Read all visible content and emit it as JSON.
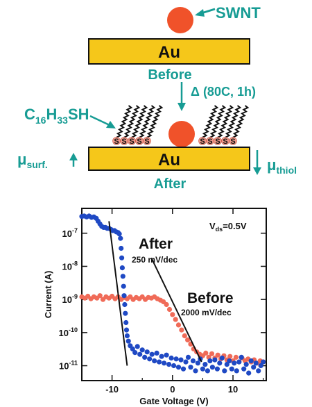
{
  "schematic": {
    "swnt_label": "SWNT",
    "electrode_label": "Au",
    "before_label": "Before",
    "after_label": "After",
    "anneal_label": "Δ (80C, 1h)",
    "thiol_label": {
      "main": "C",
      "sub1": "16",
      "mid": "H",
      "sub2": "33",
      "end": "SH"
    },
    "sulfur_symbol": "S",
    "mu_surf": {
      "mu": "μ",
      "sub": "surf."
    },
    "mu_thiol": {
      "mu": "μ",
      "sub": "thiol"
    },
    "colors": {
      "gold": "#f5c71a",
      "tube": "#f0522a",
      "teal": "#179c94",
      "sulfur": "#f19a8c"
    }
  },
  "chart_data": {
    "type": "scatter",
    "xlabel": "Gate Voltage (V)",
    "ylabel": "Current (A)",
    "xlim": [
      -15,
      15.5
    ],
    "ylim_log10": [
      -11.45,
      -6.25
    ],
    "y_scale": "log",
    "x_ticks": [
      -10,
      0,
      10
    ],
    "x_tick_labels": [
      "-10",
      "0",
      "10"
    ],
    "y_ticks_log10": [
      -7,
      -8,
      -9,
      -10,
      -11
    ],
    "vds_label": {
      "main": "V",
      "sub": "ds",
      "tail": "=0.5V"
    },
    "series": [
      {
        "name": "After",
        "color": "#1f49c4",
        "points": [
          [
            -15,
            3.2e-07
          ],
          [
            -14.6,
            3.3e-07
          ],
          [
            -14.2,
            3.1e-07
          ],
          [
            -13.8,
            3.3e-07
          ],
          [
            -13.4,
            3e-07
          ],
          [
            -13,
            3.1e-07
          ],
          [
            -12.6,
            2.8e-07
          ],
          [
            -12.3,
            2.3e-07
          ],
          [
            -12,
            1.9e-07
          ],
          [
            -11.7,
            1.6e-07
          ],
          [
            -11.4,
            1.5e-07
          ],
          [
            -11.1,
            1.5e-07
          ],
          [
            -10.8,
            1.4e-07
          ],
          [
            -10.5,
            1.4e-07
          ],
          [
            -10.2,
            1.3e-07
          ],
          [
            -9.9,
            1.2e-07
          ],
          [
            -9.6,
            1.2e-07
          ],
          [
            -9.3,
            1.1e-07
          ],
          [
            -9,
            1.05e-07
          ],
          [
            -8.8,
            9.5e-08
          ],
          [
            -8.6,
            7e-08
          ],
          [
            -8.5,
            3.5e-08
          ],
          [
            -8.4,
            1.8e-08
          ],
          [
            -8.3,
            9e-09
          ],
          [
            -8.2,
            5e-09
          ],
          [
            -8.1,
            2.5e-09
          ],
          [
            -8.0,
            1.3e-09
          ],
          [
            -7.9,
            7e-10
          ],
          [
            -7.8,
            3.8e-10
          ],
          [
            -7.7,
            2e-10
          ],
          [
            -7.6,
            1.2e-10
          ],
          [
            -7.5,
            8e-11
          ],
          [
            -7.3,
            5.5e-11
          ],
          [
            -7,
            4e-11
          ],
          [
            -6.6,
            3.2e-11
          ],
          [
            -6.2,
            2.5e-11
          ],
          [
            -5.8,
            3.8e-11
          ],
          [
            -5.4,
            2.2e-11
          ],
          [
            -5,
            3e-11
          ],
          [
            -4.6,
            1.8e-11
          ],
          [
            -4.2,
            2.6e-11
          ],
          [
            -3.8,
            1.6e-11
          ],
          [
            -3.4,
            2.2e-11
          ],
          [
            -3,
            1.4e-11
          ],
          [
            -2.6,
            2.4e-11
          ],
          [
            -2.2,
            1.3e-11
          ],
          [
            -1.8,
            1.9e-11
          ],
          [
            -1.4,
            1.2e-11
          ],
          [
            -1,
            2.1e-11
          ],
          [
            -0.6,
            1.1e-11
          ],
          [
            -0.2,
            1.7e-11
          ],
          [
            0.2,
            1e-11
          ],
          [
            0.6,
            1.6e-11
          ],
          [
            1,
            9e-12
          ],
          [
            1.4,
            1.5e-11
          ],
          [
            1.8,
            8e-12
          ],
          [
            2.2,
            1.3e-11
          ],
          [
            2.6,
            1.8e-11
          ],
          [
            3,
            9e-12
          ],
          [
            3.4,
            1.4e-11
          ],
          [
            3.8,
            7e-12
          ],
          [
            4.2,
            1.2e-11
          ],
          [
            4.6,
            1.6e-11
          ],
          [
            5,
            8e-12
          ],
          [
            5.4,
            1.1e-11
          ],
          [
            5.8,
            7e-12
          ],
          [
            6.2,
            1.4e-11
          ],
          [
            6.6,
            9e-12
          ],
          [
            7,
            1.5e-11
          ],
          [
            7.4,
            8e-12
          ],
          [
            7.8,
            1.2e-11
          ],
          [
            8.2,
            1.7e-11
          ],
          [
            8.6,
            7e-12
          ],
          [
            9,
            1.1e-11
          ],
          [
            9.4,
            1.4e-11
          ],
          [
            9.8,
            8e-12
          ],
          [
            10.2,
            1.2e-11
          ],
          [
            10.6,
            7e-12
          ],
          [
            11,
            1.3e-11
          ],
          [
            11.4,
            1.8e-11
          ],
          [
            11.8,
            8e-12
          ],
          [
            12.2,
            1.1e-11
          ],
          [
            12.6,
            6e-12
          ],
          [
            13,
            1.4e-11
          ],
          [
            13.4,
            9e-12
          ],
          [
            13.8,
            1.2e-11
          ],
          [
            14.2,
            7e-12
          ],
          [
            14.6,
            1e-11
          ],
          [
            15,
            1.3e-11
          ]
        ]
      },
      {
        "name": "Before",
        "color": "#f06b58",
        "points": [
          [
            -15,
            1.2e-09
          ],
          [
            -14.5,
            1.1e-09
          ],
          [
            -14,
            1.25e-09
          ],
          [
            -13.5,
            1.05e-09
          ],
          [
            -13,
            1.2e-09
          ],
          [
            -12.5,
            1.1e-09
          ],
          [
            -12,
            1.3e-09
          ],
          [
            -11.5,
            1e-09
          ],
          [
            -11,
            1.2e-09
          ],
          [
            -10.5,
            1.1e-09
          ],
          [
            -10,
            1.25e-09
          ],
          [
            -9.5,
            1.05e-09
          ],
          [
            -9,
            1.2e-09
          ],
          [
            -8.5,
            1e-09
          ],
          [
            -8,
            1.15e-09
          ],
          [
            -7.5,
            1.05e-09
          ],
          [
            -7,
            1.2e-09
          ],
          [
            -6.5,
            1e-09
          ],
          [
            -6,
            1.15e-09
          ],
          [
            -5.5,
            1.05e-09
          ],
          [
            -5,
            1.2e-09
          ],
          [
            -4.5,
            1e-09
          ],
          [
            -4,
            1.15e-09
          ],
          [
            -3.5,
            1.1e-09
          ],
          [
            -3,
            1.2e-09
          ],
          [
            -2.5,
            1.05e-09
          ],
          [
            -2,
            9.5e-10
          ],
          [
            -1.5,
            8.5e-10
          ],
          [
            -1,
            7e-10
          ],
          [
            -0.5,
            5e-10
          ],
          [
            0,
            3.5e-10
          ],
          [
            0.5,
            2.5e-10
          ],
          [
            1,
            1.7e-10
          ],
          [
            1.5,
            1.2e-10
          ],
          [
            2,
            8e-11
          ],
          [
            2.5,
            6e-11
          ],
          [
            3,
            4.5e-11
          ],
          [
            3.5,
            3.2e-11
          ],
          [
            4,
            2.6e-11
          ],
          [
            4.5,
            2.2e-11
          ],
          [
            5,
            2e-11
          ],
          [
            5.5,
            2.4e-11
          ],
          [
            6,
            1.8e-11
          ],
          [
            6.5,
            2.3e-11
          ],
          [
            7,
            1.7e-11
          ],
          [
            7.5,
            2.1e-11
          ],
          [
            8,
            1.6e-11
          ],
          [
            8.5,
            2e-11
          ],
          [
            9,
            1.5e-11
          ],
          [
            9.5,
            1.9e-11
          ],
          [
            10,
            1.4e-11
          ],
          [
            10.5,
            1.8e-11
          ],
          [
            11,
            1.3e-11
          ],
          [
            11.5,
            1.7e-11
          ],
          [
            12,
            1.4e-11
          ],
          [
            12.5,
            1.6e-11
          ],
          [
            13,
            1.3e-11
          ],
          [
            13.5,
            1.5e-11
          ],
          [
            14,
            1.2e-11
          ],
          [
            14.5,
            1.4e-11
          ],
          [
            15,
            1.3e-11
          ]
        ]
      }
    ],
    "fit_lines": [
      {
        "name": "after-slope",
        "from": [
          -10.5,
          2.3e-07
        ],
        "to": [
          -7.5,
          1e-11
        ]
      },
      {
        "name": "before-slope",
        "from": [
          -3.5,
          1.8e-08
        ],
        "to": [
          4.8,
          1.3e-11
        ]
      }
    ],
    "annotations": [
      {
        "title": "After",
        "detail": "250 mV/dec"
      },
      {
        "title": "Before",
        "detail": "2000 mV/dec"
      }
    ]
  }
}
